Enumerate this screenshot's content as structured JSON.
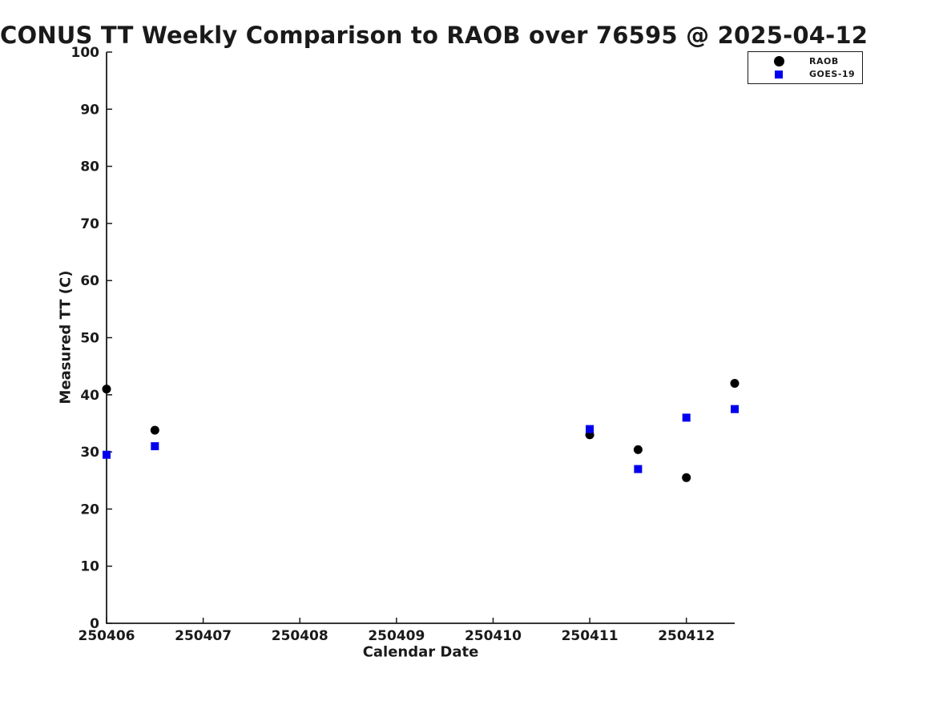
{
  "figure": {
    "background": "#ffffff",
    "axis_color": "#1a1a1a",
    "text_color": "#1a1a1a"
  },
  "chart_data": {
    "type": "scatter",
    "title": "CONUS TT Weekly Comparison to RAOB over 76595 @ 2025-04-12",
    "xlabel": "Calendar Date",
    "ylabel": "Measured TT (C)",
    "xlim": [
      250406,
      250412.5
    ],
    "ylim": [
      0,
      100
    ],
    "xticks": [
      250406,
      250407,
      250408,
      250409,
      250410,
      250411,
      250412
    ],
    "yticks": [
      0,
      10,
      20,
      30,
      40,
      50,
      60,
      70,
      80,
      90,
      100
    ],
    "grid": false,
    "legend": {
      "position": "upper-right",
      "entries": [
        "RAOB",
        "GOES-19"
      ]
    },
    "series": [
      {
        "name": "RAOB",
        "marker": "circle",
        "color": "#000000",
        "points": [
          [
            250406.0,
            41.0
          ],
          [
            250406.5,
            33.8
          ],
          [
            250411.0,
            33.0
          ],
          [
            250411.5,
            30.4
          ],
          [
            250412.0,
            25.5
          ],
          [
            250412.5,
            42.0
          ]
        ]
      },
      {
        "name": "GOES-19",
        "marker": "square",
        "color": "#0000ee",
        "points": [
          [
            250406.0,
            29.5
          ],
          [
            250406.5,
            31.0
          ],
          [
            250411.0,
            34.0
          ],
          [
            250411.5,
            27.0
          ],
          [
            250412.0,
            36.0
          ],
          [
            250412.5,
            37.5
          ]
        ]
      }
    ]
  }
}
